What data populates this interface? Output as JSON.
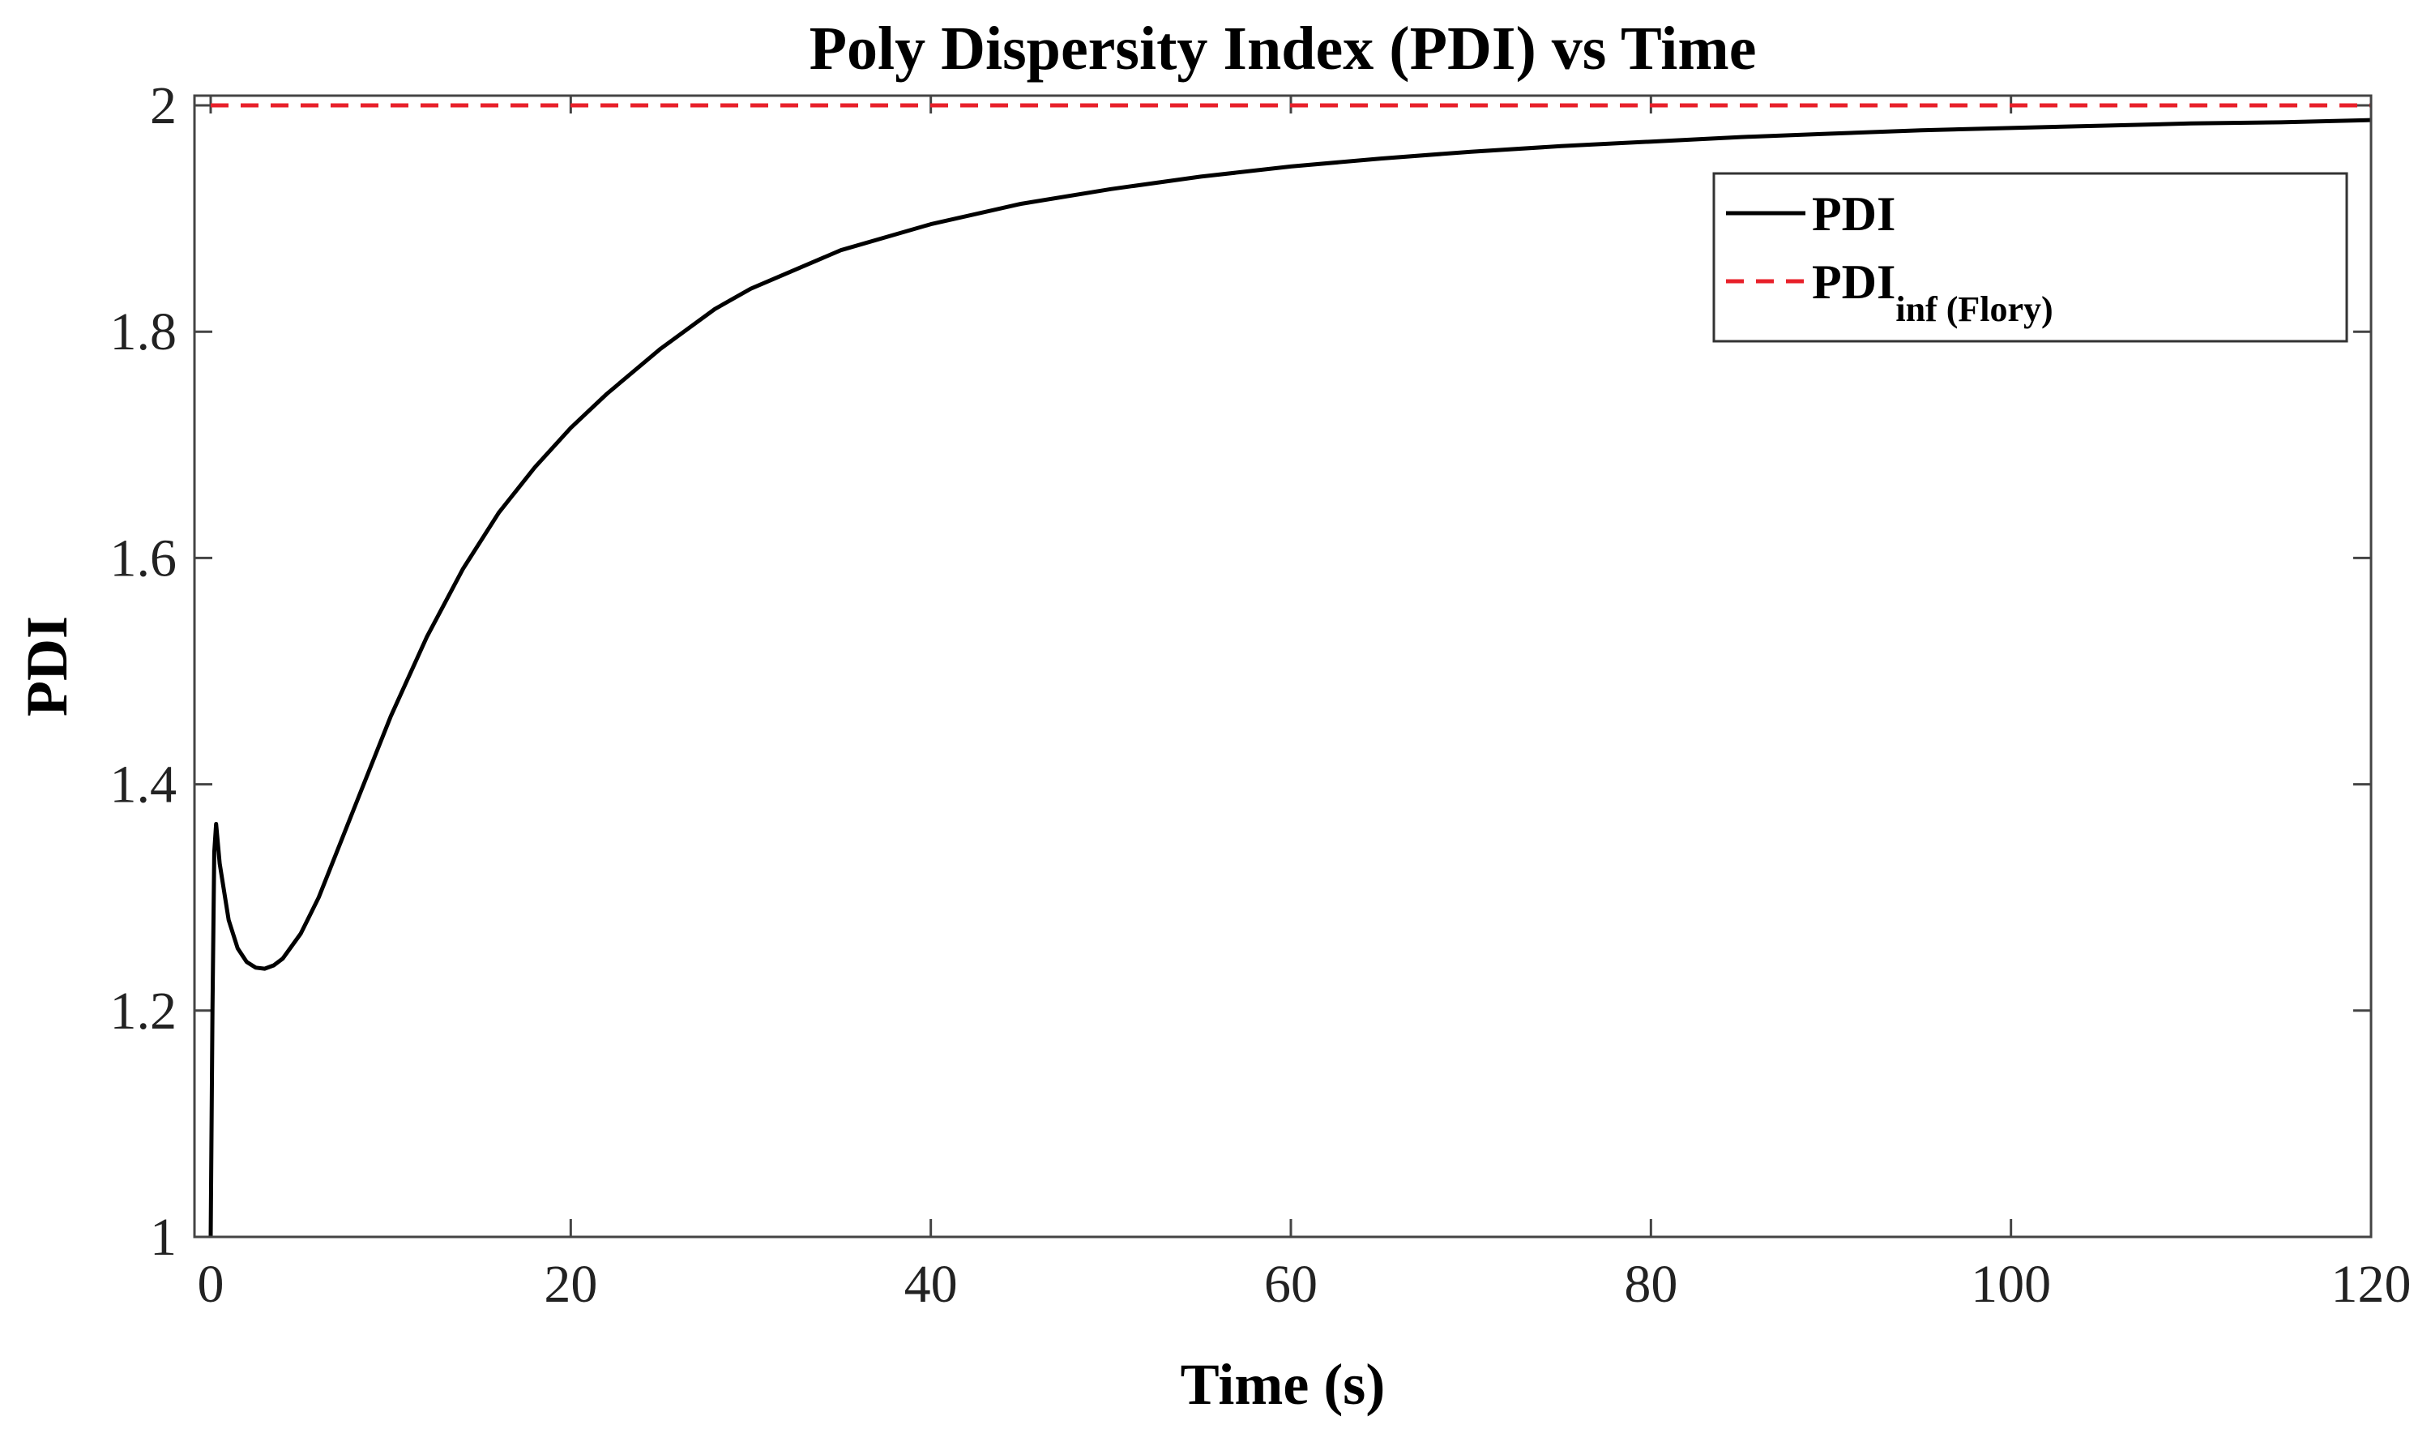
{
  "chart_data": {
    "type": "line",
    "title": "Poly Dispersity Index (PDI) vs Time",
    "xlabel": "Time (s)",
    "ylabel": "PDI",
    "xlim": [
      0,
      120
    ],
    "ylim": [
      1,
      2
    ],
    "x_ticks": [
      0,
      20,
      40,
      60,
      80,
      100,
      120
    ],
    "x_tick_labels": [
      "0",
      "20",
      "40",
      "60",
      "80",
      "100",
      "120"
    ],
    "y_ticks": [
      1,
      1.2,
      1.4,
      1.6,
      1.8,
      2
    ],
    "y_tick_labels": [
      "1",
      "1.2",
      "1.4",
      "1.6",
      "1.8",
      "2"
    ],
    "grid": false,
    "legend_position": "top-right",
    "series": [
      {
        "name": "PDI",
        "color": "#000000",
        "style": "solid",
        "x": [
          0,
          0.1,
          0.2,
          0.3,
          0.5,
          1,
          1.5,
          2,
          2.5,
          3,
          3.5,
          4,
          5,
          6,
          7,
          8,
          10,
          12,
          14,
          16,
          18,
          20,
          22,
          25,
          28,
          30,
          35,
          40,
          45,
          50,
          55,
          60,
          65,
          70,
          75,
          80,
          85,
          90,
          95,
          100,
          105,
          110,
          115,
          120
        ],
        "values": [
          1.0,
          1.2,
          1.34,
          1.365,
          1.33,
          1.28,
          1.255,
          1.243,
          1.238,
          1.237,
          1.24,
          1.246,
          1.268,
          1.3,
          1.34,
          1.38,
          1.46,
          1.53,
          1.59,
          1.64,
          1.68,
          1.715,
          1.745,
          1.785,
          1.82,
          1.838,
          1.872,
          1.895,
          1.913,
          1.926,
          1.937,
          1.946,
          1.953,
          1.959,
          1.964,
          1.968,
          1.972,
          1.975,
          1.978,
          1.98,
          1.982,
          1.984,
          1.985,
          1.987
        ]
      },
      {
        "name_main": "PDI",
        "name_sub": "inf (Flory)",
        "color": "#e8202a",
        "style": "dashed",
        "x": [
          0,
          120
        ],
        "values": [
          2.0,
          2.0
        ]
      }
    ]
  }
}
